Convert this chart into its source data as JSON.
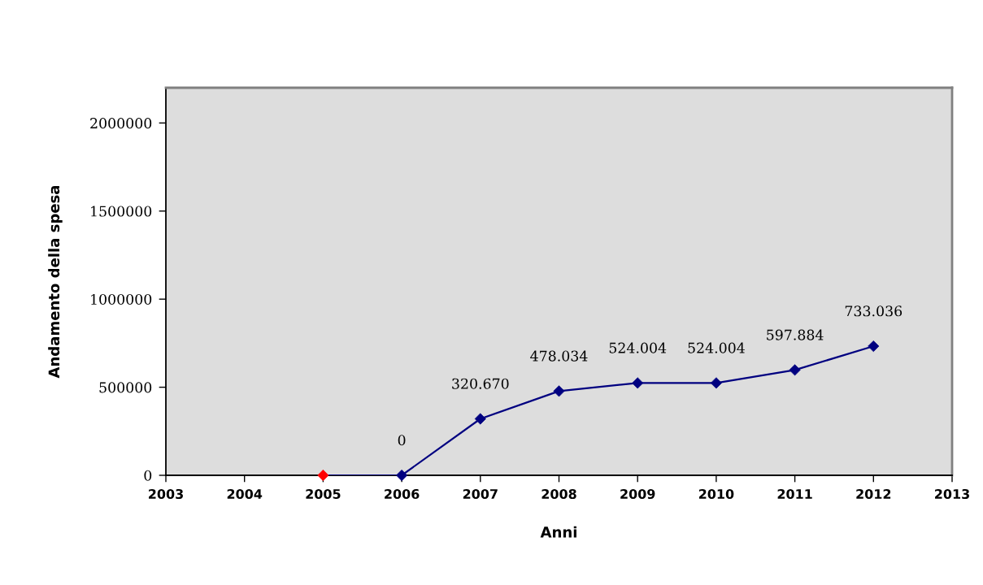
{
  "chart_data": {
    "type": "line",
    "xlabel": "Anni",
    "ylabel": "Andamento della spesa",
    "x": [
      2005,
      2006,
      2007,
      2008,
      2009,
      2010,
      2011,
      2012
    ],
    "values": [
      0,
      0,
      320670,
      478034,
      524004,
      524004,
      597884,
      733036
    ],
    "value_labels": [
      null,
      "0",
      "320.670",
      "478.034",
      "524.004",
      "524.004",
      "597.884",
      "733.036"
    ],
    "color": "#000080",
    "colors": [
      "#ff0000",
      "#000080",
      "#000080",
      "#000080",
      "#000080",
      "#000080",
      "#000080",
      "#000080"
    ],
    "marker": "diamond",
    "line_style": "solid",
    "grid": false,
    "xlim": [
      2003,
      2013
    ],
    "xticks": [
      2003,
      2004,
      2005,
      2006,
      2007,
      2008,
      2009,
      2010,
      2011,
      2012,
      2013
    ],
    "ylim": [
      0,
      2200000
    ],
    "yticks": [
      0,
      500000,
      1000000,
      1500000,
      2000000
    ]
  }
}
